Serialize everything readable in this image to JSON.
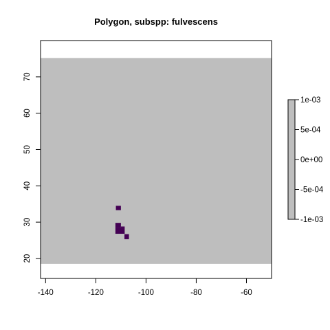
{
  "chart_data": {
    "type": "heatmap",
    "title": "Polygon, subspp: fulvescens",
    "xlabel": "",
    "ylabel": "",
    "xlim": [
      -142,
      -50
    ],
    "ylim": [
      14.5,
      80
    ],
    "x_ticks": [
      -140,
      -120,
      -100,
      -80,
      -60
    ],
    "y_ticks": [
      20,
      30,
      40,
      50,
      60,
      70
    ],
    "raster_extent": {
      "x": [
        -142,
        -50
      ],
      "y": [
        18.5,
        75.2
      ]
    },
    "background_color": "#bebebe",
    "cell_color": "#440154",
    "cell_size": 1,
    "cells": [
      {
        "x0": -112,
        "y0": 33.3,
        "x1": -110,
        "y1": 34.5
      },
      {
        "x0": -112.2,
        "y0": 28.5,
        "x1": -110,
        "y1": 29.8
      },
      {
        "x0": -112.2,
        "y0": 26.8,
        "x1": -108.5,
        "y1": 28.5
      },
      {
        "x0": -110,
        "y0": 28.5,
        "x1": -108.5,
        "y1": 28.8
      },
      {
        "x0": -108.6,
        "y0": 25.3,
        "x1": -106.8,
        "y1": 26.7
      }
    ],
    "legend": {
      "position": "right",
      "range": [
        -0.001,
        0.001
      ],
      "ticks": [
        "1e-03",
        "5e-04",
        "0e+00",
        "-5e-04",
        "-1e-03"
      ],
      "color": "#bebebe"
    }
  }
}
